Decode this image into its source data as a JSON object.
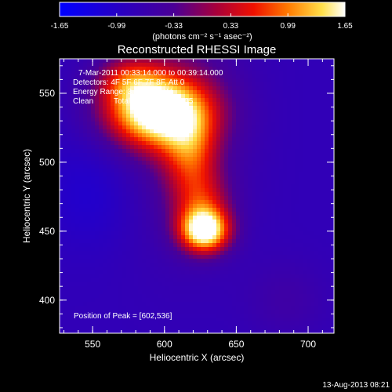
{
  "chart_data": {
    "type": "heatmap",
    "title": "Reconstructed RHESSI Image",
    "xlabel": "Heliocentric X (arcsec)",
    "ylabel": "Heliocentric Y (arcsec)",
    "xlim": [
      527,
      718
    ],
    "ylim": [
      376,
      575
    ],
    "x_ticks": [
      550,
      600,
      650,
      700
    ],
    "y_ticks": [
      400,
      450,
      500,
      550
    ],
    "colorbar": {
      "vmin": -1.65,
      "vmax": 1.65,
      "tick_values": [
        -1.65,
        -0.99,
        -0.33,
        0.33,
        0.99,
        1.65
      ],
      "tick_labels": [
        "-1.65",
        "-0.99",
        "-0.33",
        "0.33",
        "0.99",
        "1.65"
      ],
      "unit_label": "(photons cm⁻² s⁻¹ asec⁻²)"
    },
    "annotations": {
      "time_range": "7-Mar-2011 00:33:14.000 to 00:39:14.000",
      "detectors": "Detectors: 4F 5F 6F 7F 8F, Att 0",
      "energy": "Energy Range: 3.0-50.0 keV",
      "clean": "Clean",
      "total": "Total counts: 1.11E+05",
      "peak": "Position of Peak = [602,536]"
    },
    "peak_position": [
      602,
      536
    ],
    "background_level": -0.8,
    "sources": [
      {
        "x": 595,
        "y": 537,
        "sx": 25,
        "sy": 18,
        "amp": 2.6
      },
      {
        "x": 575,
        "y": 560,
        "sx": 16,
        "sy": 12,
        "amp": 0.9
      },
      {
        "x": 618,
        "y": 506,
        "sx": 13,
        "sy": 20,
        "amp": 1.0
      },
      {
        "x": 626,
        "y": 470,
        "sx": 14,
        "sy": 16,
        "amp": 0.9
      },
      {
        "x": 628,
        "y": 450,
        "sx": 12,
        "sy": 11,
        "amp": 2.4
      },
      {
        "x": 612,
        "y": 528,
        "sx": 30,
        "sy": 60,
        "amp": 0.55
      },
      {
        "x": 550,
        "y": 478,
        "sx": 25,
        "sy": 30,
        "amp": -0.3
      },
      {
        "x": 685,
        "y": 400,
        "sx": 20,
        "sy": 20,
        "amp": 0.25
      }
    ],
    "footer_date": "13-Aug-2013 08:21"
  }
}
